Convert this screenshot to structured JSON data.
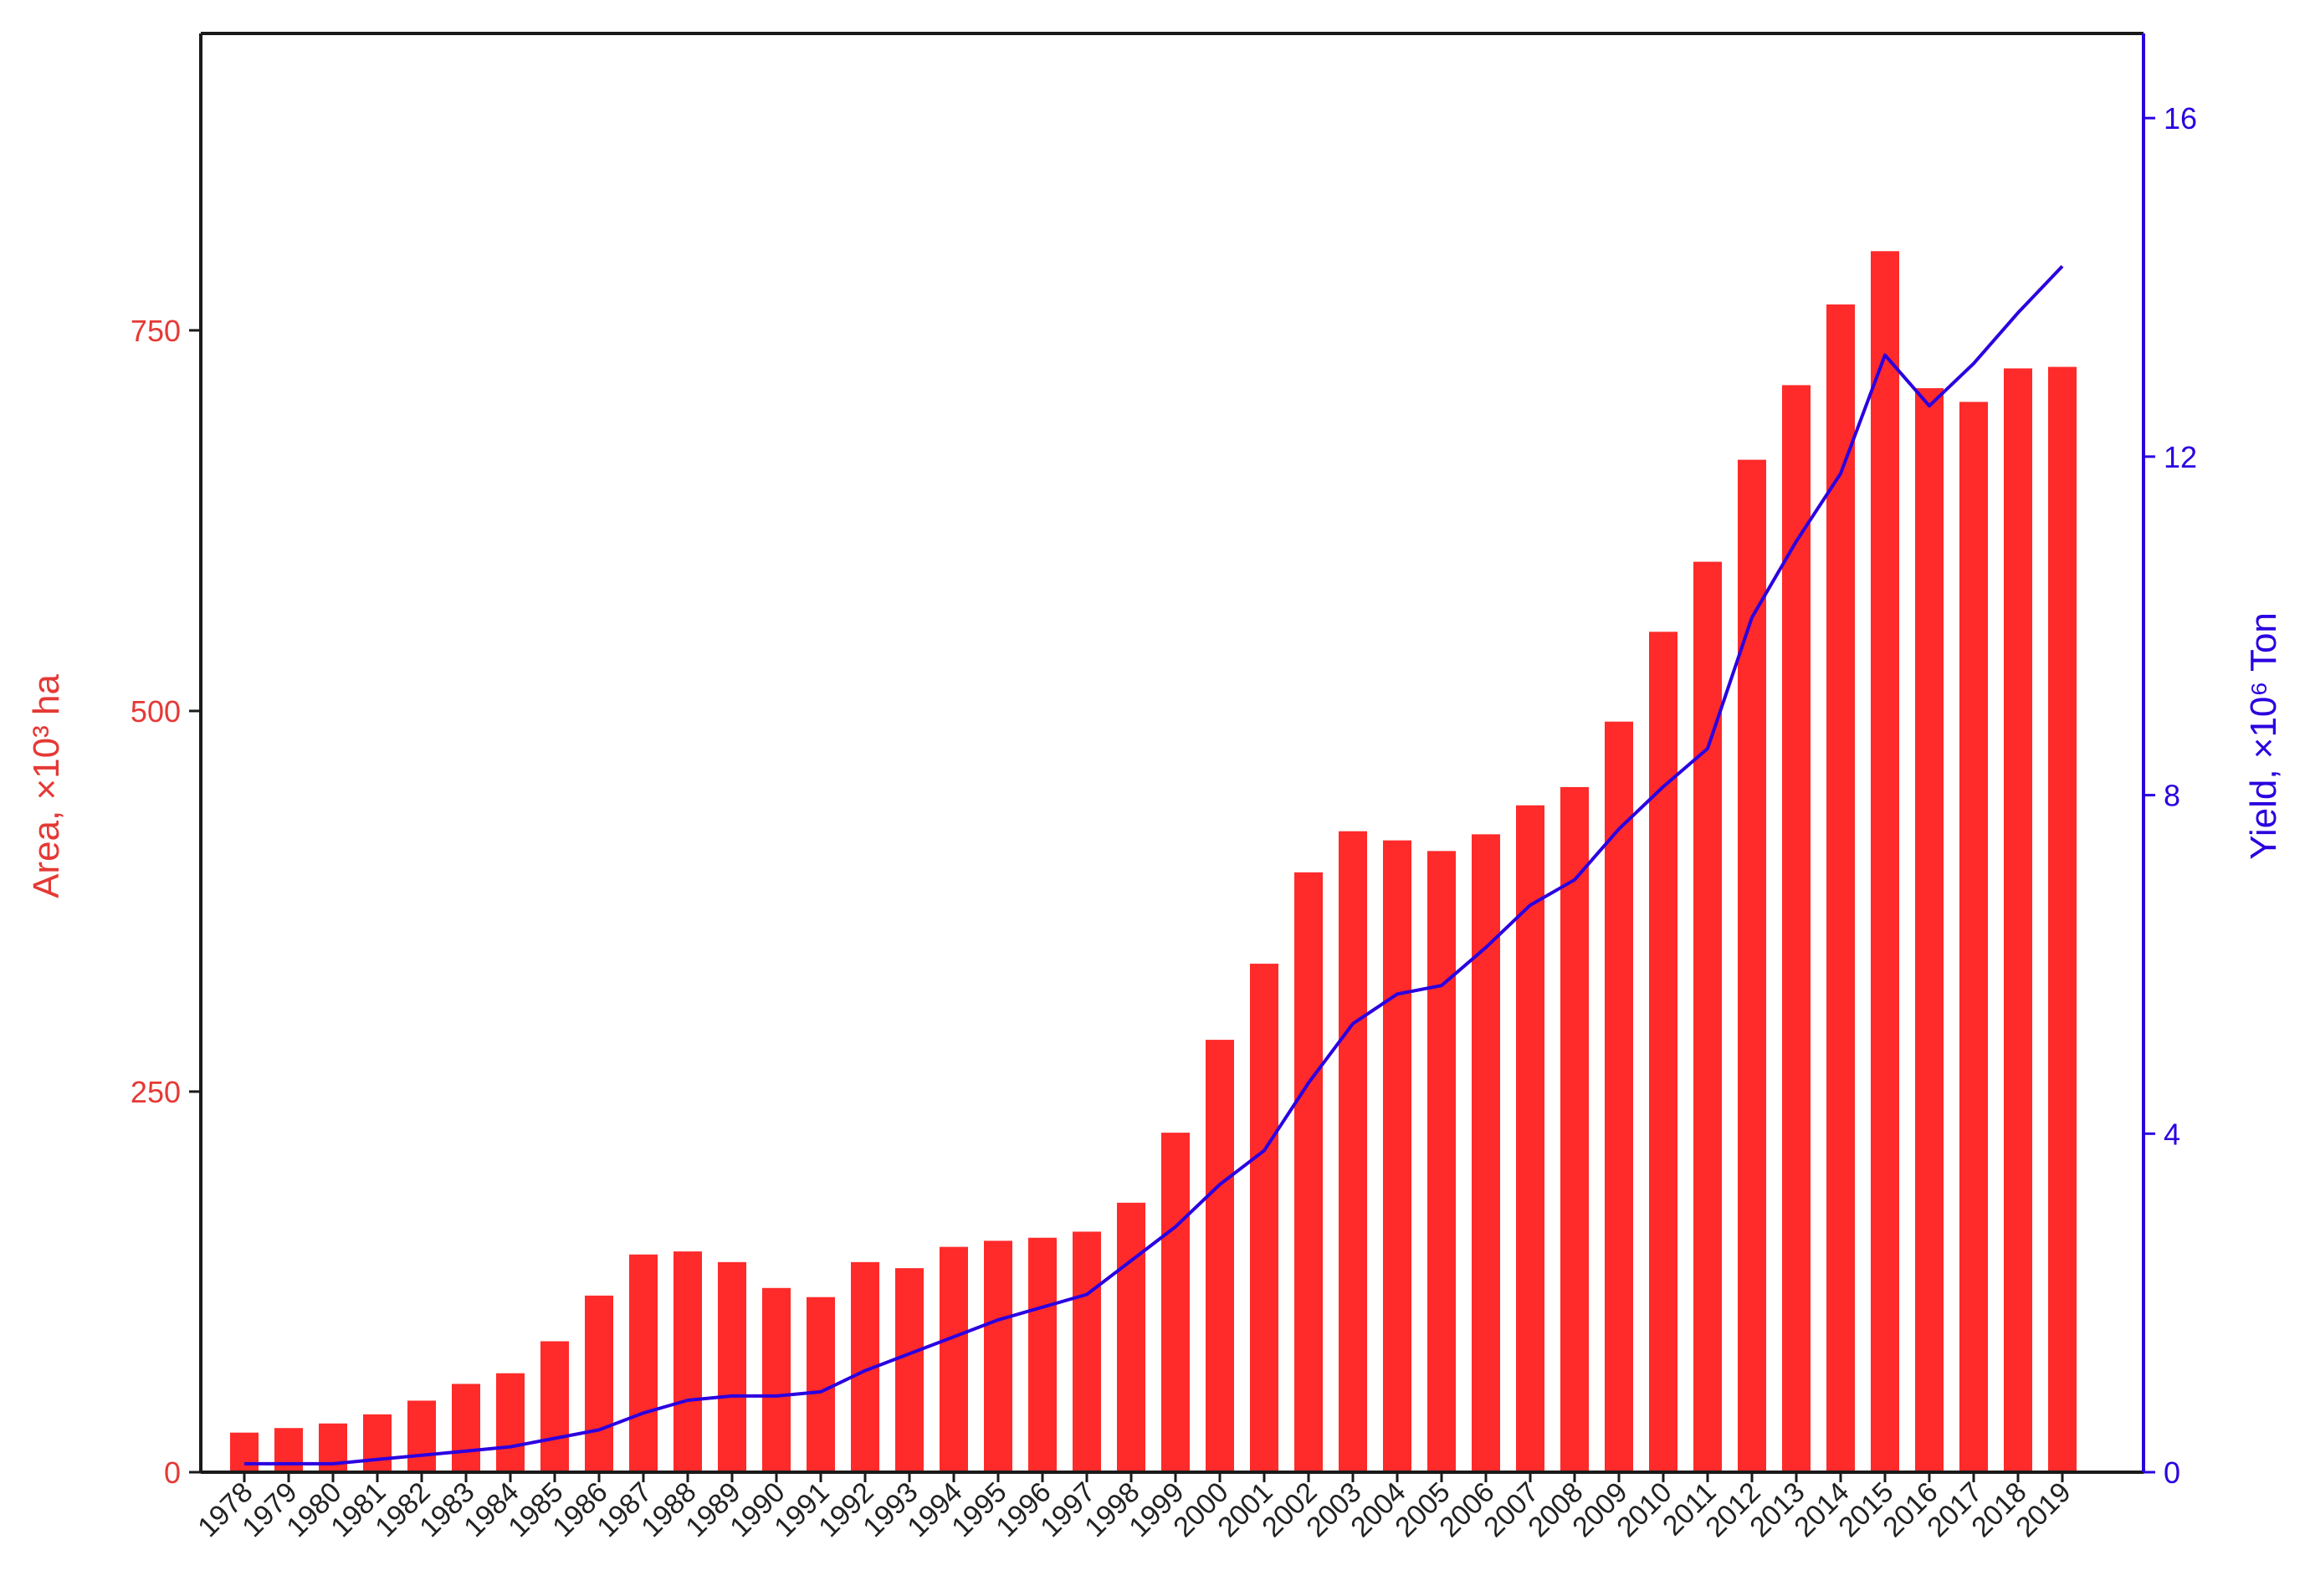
{
  "chart_data": {
    "type": "bar",
    "title": "",
    "categories": [
      "1978",
      "1979",
      "1980",
      "1981",
      "1982",
      "1983",
      "1984",
      "1985",
      "1986",
      "1987",
      "1988",
      "1989",
      "1990",
      "1991",
      "1992",
      "1993",
      "1994",
      "1995",
      "1996",
      "1997",
      "1998",
      "1999",
      "2000",
      "2001",
      "2002",
      "2003",
      "2004",
      "2005",
      "2006",
      "2007",
      "2008",
      "2009",
      "2010",
      "2011",
      "2012",
      "2013",
      "2014",
      "2015",
      "2016",
      "2017",
      "2018",
      "2019"
    ],
    "series": [
      {
        "type": "bar",
        "axis": "left",
        "color": "#ff2a2a",
        "values": [
          26,
          29,
          32,
          38,
          47,
          58,
          65,
          86,
          116,
          143,
          145,
          138,
          121,
          115,
          138,
          134,
          148,
          152,
          154,
          158,
          177,
          223,
          284,
          334,
          394,
          421,
          415,
          408,
          419,
          438,
          450,
          493,
          552,
          598,
          665,
          714,
          767,
          802,
          712,
          703,
          725,
          726
        ]
      },
      {
        "type": "line",
        "axis": "right",
        "color": "#2b00e0",
        "values": [
          0.1,
          0.1,
          0.1,
          0.15,
          0.2,
          0.25,
          0.3,
          0.4,
          0.5,
          0.7,
          0.85,
          0.9,
          0.9,
          0.95,
          1.2,
          1.4,
          1.6,
          1.8,
          1.95,
          2.1,
          2.5,
          2.9,
          3.4,
          3.8,
          4.6,
          5.3,
          5.65,
          5.75,
          6.2,
          6.7,
          7.0,
          7.6,
          8.1,
          8.55,
          10.1,
          11.0,
          11.8,
          13.2,
          12.6,
          13.1,
          13.7,
          14.25
        ]
      }
    ],
    "ylabel": "Area, ×10³ ha",
    "ylabel_right": "Yield, ×10⁶ Ton",
    "xlabel": "",
    "ylim": [
      0,
      945
    ],
    "ylim_right": [
      0,
      17
    ],
    "yticks": [
      "0",
      "250",
      "500",
      "750"
    ],
    "yticks_right": [
      "0",
      "4",
      "8",
      "12",
      "16"
    ],
    "grid": false,
    "legend": "none",
    "colors": {
      "left_axis": "#e53935",
      "right_axis": "#2b00e0",
      "bar": "#ff2a2a",
      "line": "#2b00e0",
      "frame": "#1a1a1a"
    }
  }
}
